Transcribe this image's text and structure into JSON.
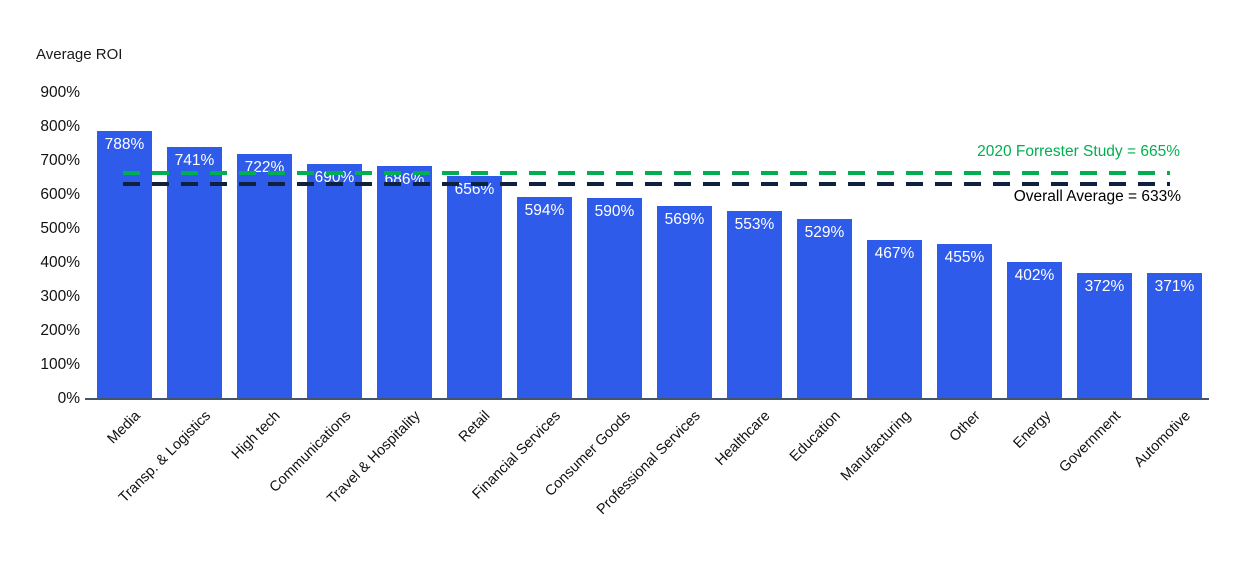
{
  "colors": {
    "bar": "#2f5beb",
    "green": "#00b050",
    "dark_navy_line": "#0e2240",
    "overall_label_text": "#000000",
    "axis_line": "#44546a",
    "text": "#111111",
    "bar_value_text": "#ffffff",
    "background": "#ffffff"
  },
  "chart_data": {
    "type": "bar",
    "title": "Average ROI",
    "ylabel": "Average ROI",
    "xlabel": "",
    "categories": [
      "Media",
      "Transp. & Logistics",
      "High tech",
      "Communications",
      "Travel & Hospitality",
      "Retail",
      "Financial Services",
      "Consumer Goods",
      "Professional Services",
      "Healthcare",
      "Education",
      "Manufacturing",
      "Other",
      "Energy",
      "Government",
      "Automotive"
    ],
    "values": [
      788,
      741,
      722,
      690,
      686,
      656,
      594,
      590,
      569,
      553,
      529,
      467,
      455,
      402,
      372,
      371
    ],
    "value_labels": [
      "788%",
      "741%",
      "722%",
      "690%",
      "686%",
      "656%",
      "594%",
      "590%",
      "569%",
      "553%",
      "529%",
      "467%",
      "455%",
      "402%",
      "372%",
      "371%"
    ],
    "ylim": [
      0,
      900
    ],
    "ytick_step": 100,
    "ytick_labels": [
      "0%",
      "100%",
      "200%",
      "300%",
      "400%",
      "500%",
      "600%",
      "700%",
      "800%",
      "900%"
    ],
    "grid": false,
    "legend": "none",
    "bar_color": "#2f5beb",
    "reference_lines": [
      {
        "name": "2020-forrester-study",
        "value": 665,
        "label": "2020 Forrester Study = 665%",
        "line_color": "#00b050",
        "label_color": "#00b050",
        "style": "dashed"
      },
      {
        "name": "overall-average",
        "value": 633,
        "label": "Overall Average = 633%",
        "line_color": "#0e2240",
        "label_color": "#000000",
        "style": "dashed"
      }
    ]
  }
}
